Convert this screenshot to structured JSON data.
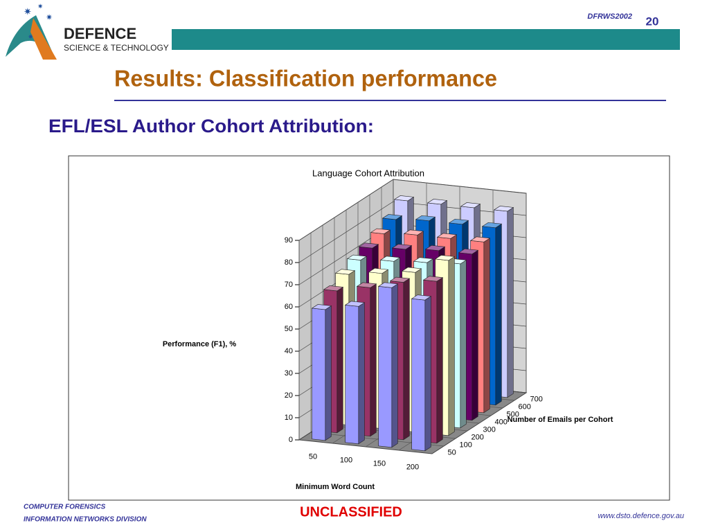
{
  "slide": {
    "logo_line1": "DEFENCE",
    "logo_line2": "SCIENCE & TECHNOLOGY",
    "conference": "DFRWS2002",
    "page_number": "20",
    "title": "Results: Classification performance",
    "subtitle": "EFL/ESL Author Cohort Attribution:",
    "footer_left1": "COMPUTER FORENSICS",
    "footer_left2": "INFORMATION NETWORKS DIVISION",
    "classification": "UNCLASSIFIED",
    "url": "www.dsto.defence.gov.au"
  },
  "chart_data": {
    "type": "bar",
    "title": "Language Cohort Attribution",
    "y_label": "Performance (F1), %",
    "x_label": "Minimum Word Count",
    "z_label": "Number of Emails per Cohort",
    "categories": [
      "50",
      "100",
      "150",
      "200"
    ],
    "series": [
      {
        "name": "50",
        "color": "#9999ff",
        "values": [
          59,
          62,
          72,
          68
        ]
      },
      {
        "name": "100",
        "color": "#993366",
        "values": [
          64,
          67,
          71,
          73
        ]
      },
      {
        "name": "200",
        "color": "#ffffcc",
        "values": [
          68,
          70,
          72,
          79
        ]
      },
      {
        "name": "300",
        "color": "#ccffff",
        "values": [
          71,
          72,
          73,
          74
        ]
      },
      {
        "name": "400",
        "color": "#660066",
        "values": [
          73,
          74,
          75,
          75
        ]
      },
      {
        "name": "500",
        "color": "#ff8080",
        "values": [
          76,
          77,
          77,
          77
        ]
      },
      {
        "name": "600",
        "color": "#0066cc",
        "values": [
          79,
          80,
          80,
          80
        ]
      },
      {
        "name": "700",
        "color": "#ccccff",
        "values": [
          84,
          84,
          84,
          84
        ]
      }
    ],
    "ylim": [
      0,
      90
    ],
    "yticks": [
      0,
      10,
      20,
      30,
      40,
      50,
      60,
      70,
      80,
      90
    ],
    "grid": true
  }
}
